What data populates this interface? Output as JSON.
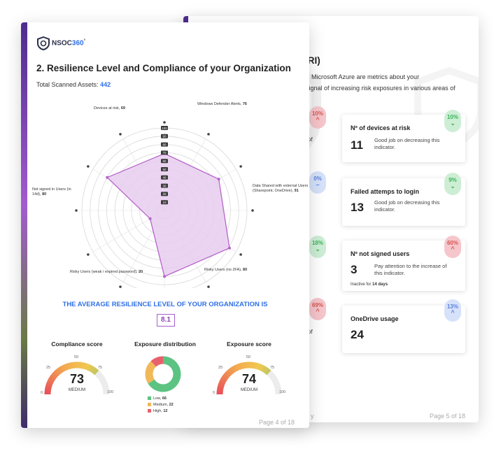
{
  "back_page": {
    "heading_fragment": "KRI)",
    "intro_line_1": "om Microsoft Azure are metrics about your",
    "intro_line_2": "y signal of increasing risk exposures in various areas of",
    "intro_line_3": "f",
    "left_fragments": [
      "of",
      "of"
    ],
    "left_pills": [
      {
        "pct": "10%",
        "color": "red",
        "chev": "^"
      },
      {
        "pct": "0%",
        "color": "blue",
        "chev": "–"
      },
      {
        "pct": "18%",
        "color": "green",
        "chev": "⌄"
      },
      {
        "pct": "69%",
        "color": "red",
        "chev": "^"
      }
    ],
    "cards": [
      {
        "title": "Nº of devices at risk",
        "value": "11",
        "desc": "Good job on decreasing this indicator.",
        "note": "",
        "pct": "10%",
        "color": "green",
        "chev": "⌄"
      },
      {
        "title": "Failed attemps to login",
        "value": "13",
        "desc": "Good job on decreasing this indicator.",
        "note": "",
        "pct": "9%",
        "color": "green",
        "chev": "⌄"
      },
      {
        "title": "Nº not signed users",
        "value": "3",
        "desc": "Pay attention to the increase of this indicator.",
        "note_prefix": "Inactive for ",
        "note_bold": "14 days",
        "pct": "60%",
        "color": "red",
        "chev": "^"
      },
      {
        "title": "OneDrive usage",
        "value": "24",
        "desc": "",
        "note": "",
        "pct": "13%",
        "color": "blue",
        "chev": "^"
      }
    ],
    "footer_fragment": "y",
    "page_label": "Page 5 of 18"
  },
  "front_page": {
    "logo_text": "NSOC",
    "logo_suffix": "360",
    "logo_mark": "°",
    "title": "2. Resilience Level and Compliance of your Organization",
    "assets_label": "Total Scanned Assets: ",
    "assets_value": "442",
    "avg_title": "THE AVERAGE RESILIENCE LEVEL OF YOUR ORGANIZATION IS",
    "avg_value": "8.1",
    "compliance": {
      "title": "Compliance score",
      "value": 73,
      "value_text": "73",
      "label": "MEDIUM",
      "ticks": [
        "0",
        "25",
        "50",
        "75",
        "100"
      ]
    },
    "distribution": {
      "title": "Exposure distribution",
      "legend": [
        {
          "label": "Low, ",
          "value": "66",
          "color": "#5cc383"
        },
        {
          "label": "Medium, ",
          "value": "22",
          "color": "#f1b85a"
        },
        {
          "label": "High, ",
          "value": "12",
          "color": "#e8606a"
        }
      ]
    },
    "exposure": {
      "title": "Exposure score",
      "value": 74,
      "value_text": "74",
      "label": "MEDIUM",
      "ticks": [
        "0",
        "25",
        "50",
        "75",
        "100"
      ]
    },
    "page_label": "Page 4 of 18"
  },
  "chart_data": {
    "type": "radar",
    "scale_ticks": [
      "100",
      "90",
      "80",
      "70",
      "60",
      "50",
      "40",
      "30",
      "20",
      "10",
      "0"
    ],
    "max": 100,
    "axes": [
      {
        "label": "Devices at risk, ",
        "value": 69,
        "value_text": "69"
      },
      {
        "label": "Windows Defender Alerts, ",
        "value": 76,
        "value_text": "76"
      },
      {
        "label": "Data Shared with external Users (Sharepoint, OneDrive), ",
        "value": 91,
        "value_text": "91"
      },
      {
        "label": "Risky Users (no 2FA), ",
        "value": 80,
        "value_text": "80"
      },
      {
        "label": "Risky Users (weak / expired password), ",
        "value": 20,
        "value_text": "20"
      },
      {
        "label": "Not signed in Users (in 14d), ",
        "value": 80,
        "value_text": "80"
      }
    ],
    "unlabeled_axes": 6,
    "fill": "#e8cdee",
    "stroke": "#b664c9"
  }
}
